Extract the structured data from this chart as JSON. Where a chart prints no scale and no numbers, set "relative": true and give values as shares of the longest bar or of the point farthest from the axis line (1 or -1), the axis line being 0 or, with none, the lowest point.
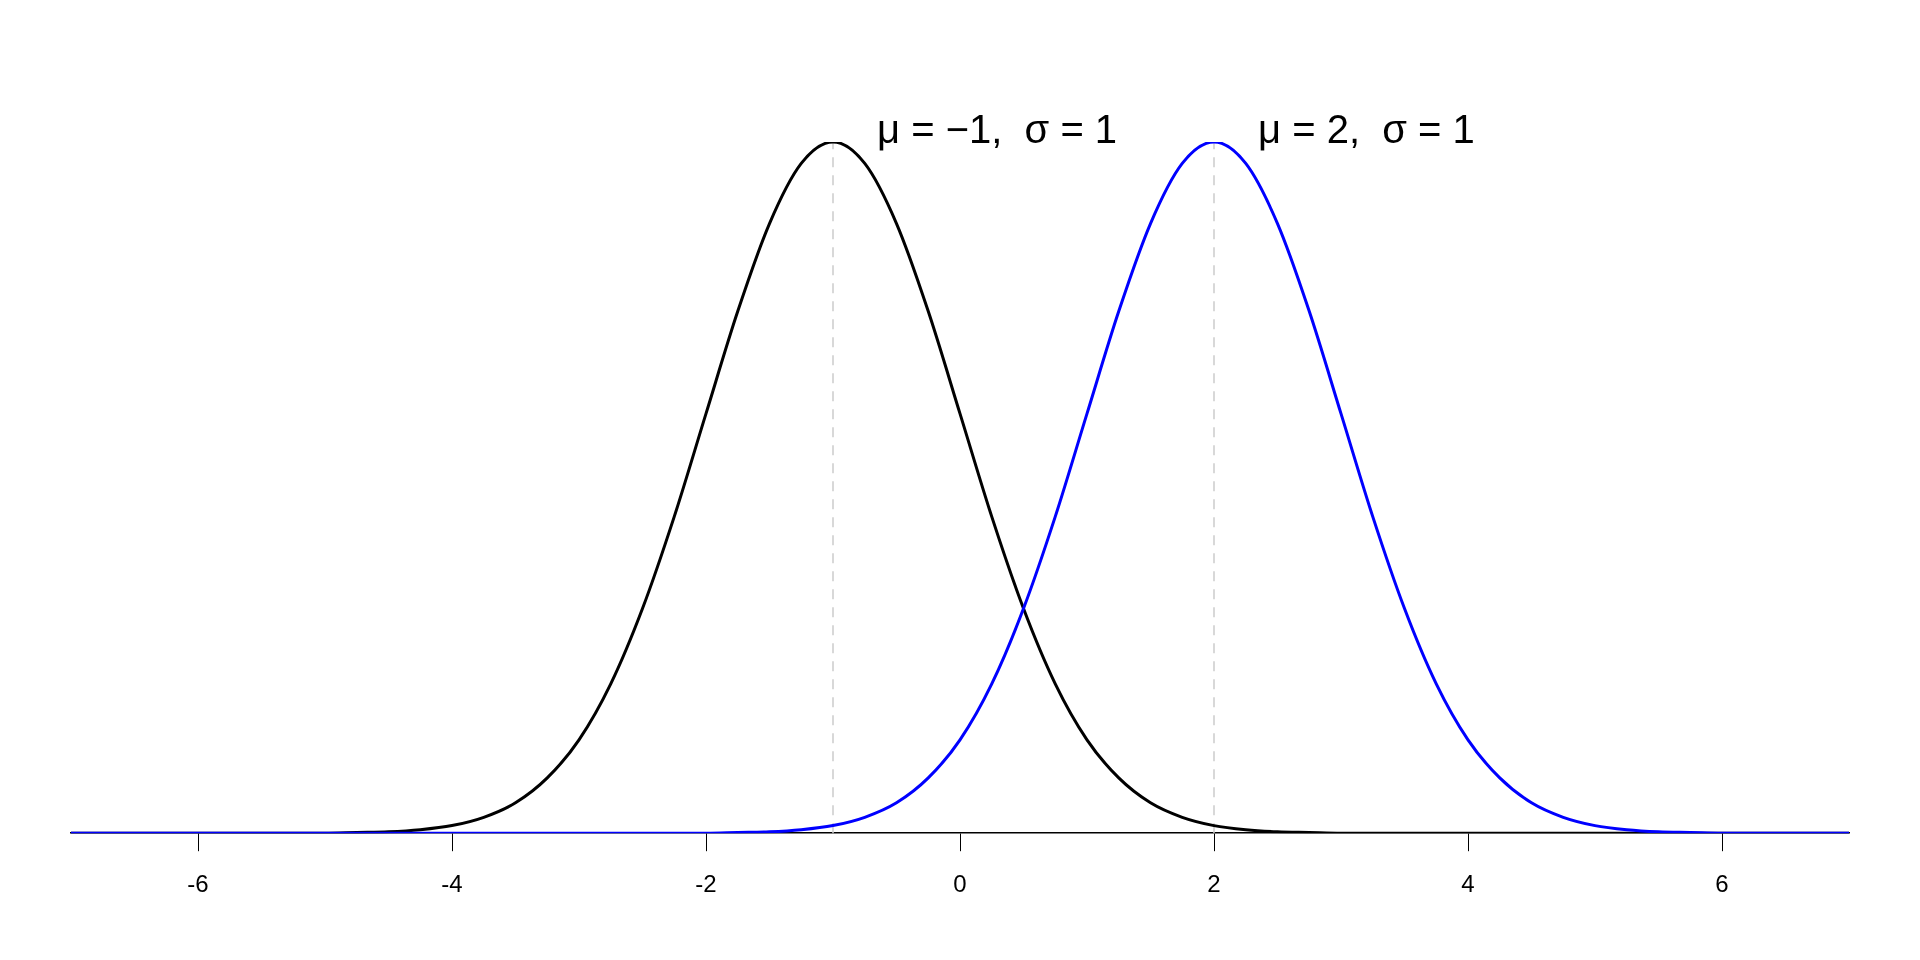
{
  "chart_data": {
    "type": "line",
    "relative": true,
    "x": [
      -7,
      -6.75,
      -6.5,
      -6.25,
      -6,
      -5.75,
      -5.5,
      -5.25,
      -5,
      -4.75,
      -4.5,
      -4.25,
      -4,
      -3.75,
      -3.5,
      -3.25,
      -3,
      -2.75,
      -2.5,
      -2.25,
      -2,
      -1.75,
      -1.5,
      -1.25,
      -1,
      -0.75,
      -0.5,
      -0.25,
      0,
      0.25,
      0.5,
      0.75,
      1,
      1.25,
      1.5,
      1.75,
      2,
      2.25,
      2.5,
      2.75,
      3,
      3.25,
      3.5,
      3.75,
      4,
      4.25,
      4.5,
      4.75,
      5,
      5.25,
      5.5,
      5.75,
      6,
      6.25,
      6.5,
      6.75,
      7
    ],
    "xlim": [
      -7,
      7
    ],
    "xticks": [
      -6,
      -4,
      -2,
      0,
      2,
      4,
      6
    ],
    "series": [
      {
        "color": "#000000",
        "values": [
          0,
          0,
          0,
          0,
          0,
          0,
          0,
          0,
          0,
          0.001,
          0.002,
          0.005,
          0.011,
          0.023,
          0.044,
          0.08,
          0.135,
          0.216,
          0.325,
          0.458,
          0.607,
          0.755,
          0.882,
          0.969,
          1,
          0.969,
          0.882,
          0.755,
          0.607,
          0.458,
          0.325,
          0.216,
          0.135,
          0.08,
          0.044,
          0.023,
          0.011,
          0.005,
          0.002,
          0.001,
          0,
          0,
          0,
          0,
          0,
          0,
          0,
          0,
          0,
          0,
          0,
          0,
          0,
          0,
          0,
          0,
          0
        ]
      },
      {
        "color": "#0000ff",
        "values": [
          0,
          0,
          0,
          0,
          0,
          0,
          0,
          0,
          0,
          0,
          0,
          0,
          0,
          0,
          0,
          0,
          0,
          0,
          0,
          0,
          0,
          0.001,
          0.002,
          0.005,
          0.011,
          0.023,
          0.044,
          0.08,
          0.135,
          0.216,
          0.325,
          0.458,
          0.607,
          0.755,
          0.882,
          0.969,
          1,
          0.969,
          0.882,
          0.755,
          0.607,
          0.458,
          0.325,
          0.216,
          0.135,
          0.08,
          0.044,
          0.023,
          0.011,
          0.005,
          0.002,
          0.001,
          0,
          0,
          0,
          0,
          0
        ]
      }
    ],
    "ref_lines": [
      {
        "axis": "x",
        "value": -1,
        "color": "#cccccc",
        "line_style": "dashed"
      },
      {
        "axis": "x",
        "value": 2,
        "color": "#cccccc",
        "line_style": "dashed"
      }
    ],
    "annotations": [
      {
        "text": "μ = −1,  σ = 1",
        "x": -1,
        "y": 1
      },
      {
        "text": "μ = 2,  σ = 1",
        "x": 2,
        "y": 1
      }
    ],
    "grid": false,
    "legend": false,
    "marker": "none",
    "line_style": "solid"
  }
}
